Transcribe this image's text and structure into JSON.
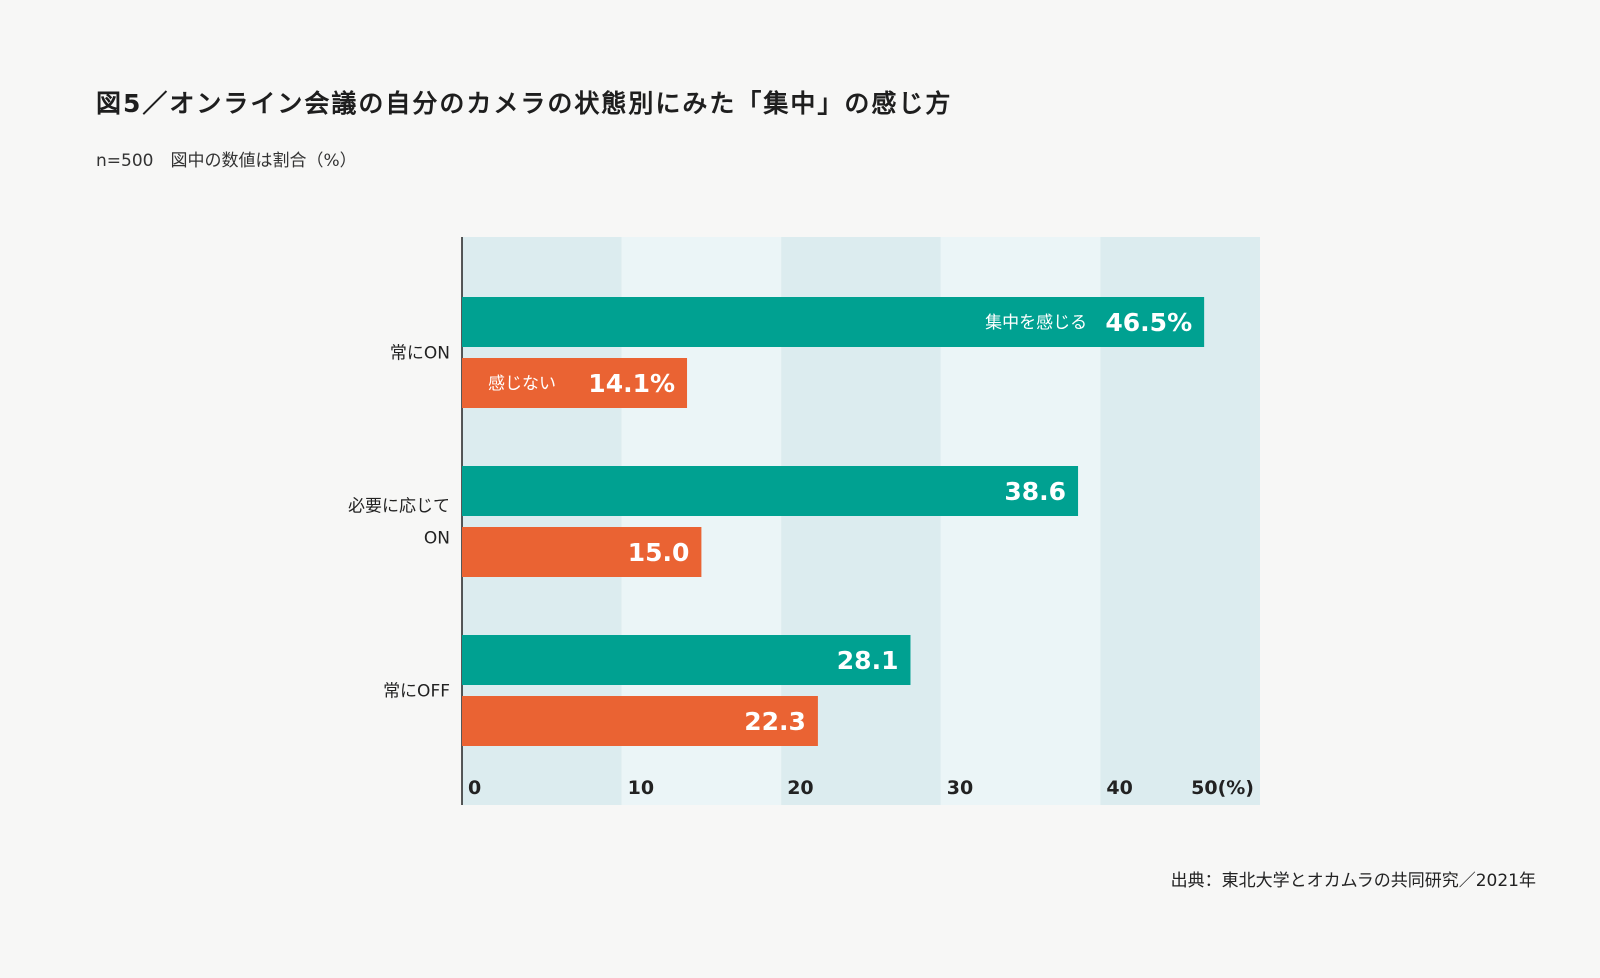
{
  "title": "図5／オンライン会議の自分のカメラの状態別にみた「集中」の感じ方",
  "subtitle": "n=500　図中の数値は割合（%）",
  "source": "出典：東北大学とオカムラの共同研究／2021年",
  "chart_data": {
    "type": "bar",
    "orientation": "horizontal",
    "categories": [
      "常にON",
      "必要に応じて\nON",
      "常にOFF"
    ],
    "series": [
      {
        "name": "集中を感じる",
        "color": "#00a191",
        "values": [
          46.5,
          38.6,
          28.1
        ],
        "value_labels": [
          "46.5%",
          "38.6",
          "28.1"
        ]
      },
      {
        "name": "感じない",
        "color": "#ea6333",
        "values": [
          14.1,
          15.0,
          22.3
        ],
        "value_labels": [
          "14.1%",
          "15.0",
          "22.3"
        ]
      }
    ],
    "xlim": [
      0,
      50
    ],
    "x_ticks": [
      0,
      10,
      20,
      30,
      40,
      50
    ],
    "x_tick_labels": [
      "0",
      "10",
      "20",
      "30",
      "40",
      "50(%)"
    ],
    "band_colors": [
      "#dcecef",
      "#ebf5f7"
    ],
    "grid": false,
    "legend": "inline"
  }
}
